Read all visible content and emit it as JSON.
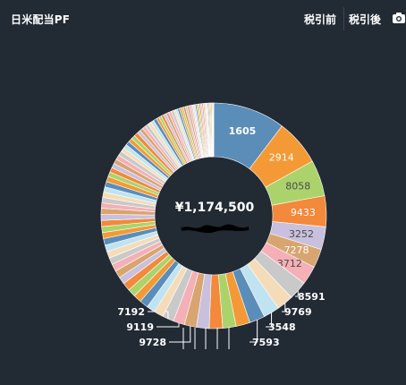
{
  "header": {
    "title": "日米配当PF",
    "tab_pre_tax": "税引前",
    "tab_post_tax": "税引後",
    "camera_icon": "camera-icon"
  },
  "center": {
    "total": "¥1,174,500"
  },
  "colors": {
    "blue": "#5b8db9",
    "orange": "#f39a36",
    "green": "#acd36b",
    "orange2": "#f3893a",
    "lavender": "#c9c0dd",
    "tan": "#d8a470",
    "pink": "#f4b0b6",
    "gray": "#c9c9c9",
    "peach": "#f5dcb8",
    "lightblue": "#bfe3f1"
  },
  "chart_data": {
    "type": "pie",
    "slices": [
      {
        "label": "1605",
        "value": 10.8,
        "color": "#5b8db9"
      },
      {
        "label": "2914",
        "value": 6.9,
        "color": "#f39a36"
      },
      {
        "label": "8058",
        "value": 5.4,
        "color": "#acd36b"
      },
      {
        "label": "9433",
        "value": 4.6,
        "color": "#f3893a"
      },
      {
        "label": "3252",
        "value": 3.4,
        "color": "#c9c0dd"
      },
      {
        "label": "7278",
        "value": 2.8,
        "color": "#d8a470"
      },
      {
        "label": "3712",
        "value": 2.8,
        "color": "#f4b0b6"
      },
      {
        "label": "8591",
        "value": 2.8,
        "color": "#c9c9c9"
      },
      {
        "label": "9769",
        "value": 2.5,
        "color": "#f5dcb8"
      },
      {
        "label": "3548",
        "value": 2.4,
        "color": "#bfe3f1"
      },
      {
        "label": "7593",
        "value": 2.3,
        "color": "#5b8db9"
      },
      {
        "label": "",
        "value": 2.1,
        "color": "#f39a36"
      },
      {
        "label": "",
        "value": 2.0,
        "color": "#acd36b"
      },
      {
        "label": "",
        "value": 2.0,
        "color": "#f3893a"
      },
      {
        "label": "",
        "value": 1.9,
        "color": "#c9c0dd"
      },
      {
        "label": "9728",
        "value": 1.8,
        "color": "#d8a470"
      },
      {
        "label": "9119",
        "value": 1.7,
        "color": "#f4b0b6"
      },
      {
        "label": "7192",
        "value": 1.7,
        "color": "#c9c9c9"
      },
      {
        "label": "",
        "value": 1.4,
        "color": "#f5dcb8"
      },
      {
        "label": "",
        "value": 1.3,
        "color": "#bfe3f1"
      },
      {
        "label": "",
        "value": 1.3,
        "color": "#5b8db9"
      },
      {
        "label": "",
        "value": 1.2,
        "color": "#f39a36"
      },
      {
        "label": "",
        "value": 1.2,
        "color": "#acd36b"
      },
      {
        "label": "",
        "value": 1.2,
        "color": "#f3893a"
      },
      {
        "label": "",
        "value": 1.1,
        "color": "#c9c0dd"
      },
      {
        "label": "",
        "value": 1.1,
        "color": "#d8a470"
      },
      {
        "label": "",
        "value": 1.1,
        "color": "#f4b0b6"
      },
      {
        "label": "",
        "value": 1.0,
        "color": "#c9c9c9"
      },
      {
        "label": "",
        "value": 1.0,
        "color": "#f5dcb8"
      },
      {
        "label": "",
        "value": 1.0,
        "color": "#bfe3f1"
      },
      {
        "label": "",
        "value": 1.0,
        "color": "#5b8db9"
      },
      {
        "label": "",
        "value": 0.9,
        "color": "#f39a36"
      },
      {
        "label": "",
        "value": 0.9,
        "color": "#acd36b"
      },
      {
        "label": "",
        "value": 0.9,
        "color": "#f3893a"
      },
      {
        "label": "",
        "value": 0.9,
        "color": "#c9c0dd"
      },
      {
        "label": "",
        "value": 0.9,
        "color": "#d8a470"
      },
      {
        "label": "",
        "value": 0.8,
        "color": "#f4b0b6"
      },
      {
        "label": "",
        "value": 0.8,
        "color": "#c9c9c9"
      },
      {
        "label": "",
        "value": 0.8,
        "color": "#f5dcb8"
      },
      {
        "label": "",
        "value": 0.8,
        "color": "#bfe3f1"
      },
      {
        "label": "",
        "value": 0.8,
        "color": "#5b8db9"
      },
      {
        "label": "",
        "value": 0.8,
        "color": "#f39a36"
      },
      {
        "label": "",
        "value": 0.7,
        "color": "#acd36b"
      },
      {
        "label": "",
        "value": 0.7,
        "color": "#f3893a"
      },
      {
        "label": "",
        "value": 0.7,
        "color": "#c9c0dd"
      },
      {
        "label": "",
        "value": 0.7,
        "color": "#d8a470"
      },
      {
        "label": "",
        "value": 0.7,
        "color": "#f4b0b6"
      },
      {
        "label": "",
        "value": 0.7,
        "color": "#c9c9c9"
      },
      {
        "label": "",
        "value": 0.6,
        "color": "#f5dcb8"
      },
      {
        "label": "",
        "value": 0.6,
        "color": "#bfe3f1"
      },
      {
        "label": "",
        "value": 0.6,
        "color": "#5b8db9"
      },
      {
        "label": "",
        "value": 0.6,
        "color": "#f39a36"
      },
      {
        "label": "",
        "value": 0.6,
        "color": "#acd36b"
      },
      {
        "label": "",
        "value": 0.6,
        "color": "#f3893a"
      },
      {
        "label": "",
        "value": 0.5,
        "color": "#c9c0dd"
      },
      {
        "label": "",
        "value": 0.5,
        "color": "#d8a470"
      },
      {
        "label": "",
        "value": 0.5,
        "color": "#f4b0b6"
      },
      {
        "label": "",
        "value": 0.5,
        "color": "#c9c9c9"
      },
      {
        "label": "",
        "value": 0.5,
        "color": "#f5dcb8"
      },
      {
        "label": "",
        "value": 0.5,
        "color": "#bfe3f1"
      },
      {
        "label": "",
        "value": 0.5,
        "color": "#5b8db9"
      },
      {
        "label": "",
        "value": 0.4,
        "color": "#f39a36"
      },
      {
        "label": "",
        "value": 0.4,
        "color": "#acd36b"
      },
      {
        "label": "",
        "value": 0.4,
        "color": "#f3893a"
      },
      {
        "label": "",
        "value": 0.4,
        "color": "#c9c0dd"
      },
      {
        "label": "",
        "value": 0.4,
        "color": "#d8a470"
      },
      {
        "label": "",
        "value": 0.4,
        "color": "#f4b0b6"
      },
      {
        "label": "",
        "value": 0.4,
        "color": "#c9c9c9"
      },
      {
        "label": "",
        "value": 0.3,
        "color": "#f5dcb8"
      },
      {
        "label": "",
        "value": 0.3,
        "color": "#bfe3f1"
      },
      {
        "label": "",
        "value": 0.3,
        "color": "#5b8db9"
      },
      {
        "label": "",
        "value": 0.3,
        "color": "#f39a36"
      },
      {
        "label": "",
        "value": 0.3,
        "color": "#acd36b"
      },
      {
        "label": "",
        "value": 0.3,
        "color": "#f3893a"
      },
      {
        "label": "",
        "value": 0.3,
        "color": "#c9c0dd"
      },
      {
        "label": "",
        "value": 0.3,
        "color": "#d8a470"
      },
      {
        "label": "",
        "value": 0.3,
        "color": "#f4b0b6"
      },
      {
        "label": "",
        "value": 0.2,
        "color": "#c9c9c9"
      },
      {
        "label": "",
        "value": 0.2,
        "color": "#f5dcb8"
      },
      {
        "label": "",
        "value": 0.2,
        "color": "#bfe3f1"
      },
      {
        "label": "",
        "value": 0.2,
        "color": "#5b8db9"
      },
      {
        "label": "",
        "value": 0.2,
        "color": "#f39a36"
      },
      {
        "label": "",
        "value": 0.2,
        "color": "#acd36b"
      },
      {
        "label": "",
        "value": 0.2,
        "color": "#f3893a"
      },
      {
        "label": "",
        "value": 0.2,
        "color": "#c9c0dd"
      },
      {
        "label": "",
        "value": 0.2,
        "color": "#d8a470"
      },
      {
        "label": "",
        "value": 0.2,
        "color": "#f4b0b6"
      },
      {
        "label": "",
        "value": 0.15,
        "color": "#c9c9c9"
      },
      {
        "label": "",
        "value": 0.15,
        "color": "#f5dcb8"
      },
      {
        "label": "",
        "value": 0.15,
        "color": "#bfe3f1"
      },
      {
        "label": "",
        "value": 0.15,
        "color": "#5b8db9"
      },
      {
        "label": "",
        "value": 0.15,
        "color": "#f39a36"
      },
      {
        "label": "",
        "value": 0.15,
        "color": "#acd36b"
      },
      {
        "label": "",
        "value": 0.15,
        "color": "#f3893a"
      },
      {
        "label": "",
        "value": 0.1,
        "color": "#c9c0dd"
      },
      {
        "label": "",
        "value": 0.1,
        "color": "#d8a470"
      },
      {
        "label": "",
        "value": 0.1,
        "color": "#f4b0b6"
      }
    ],
    "title": "",
    "legend": "none"
  }
}
